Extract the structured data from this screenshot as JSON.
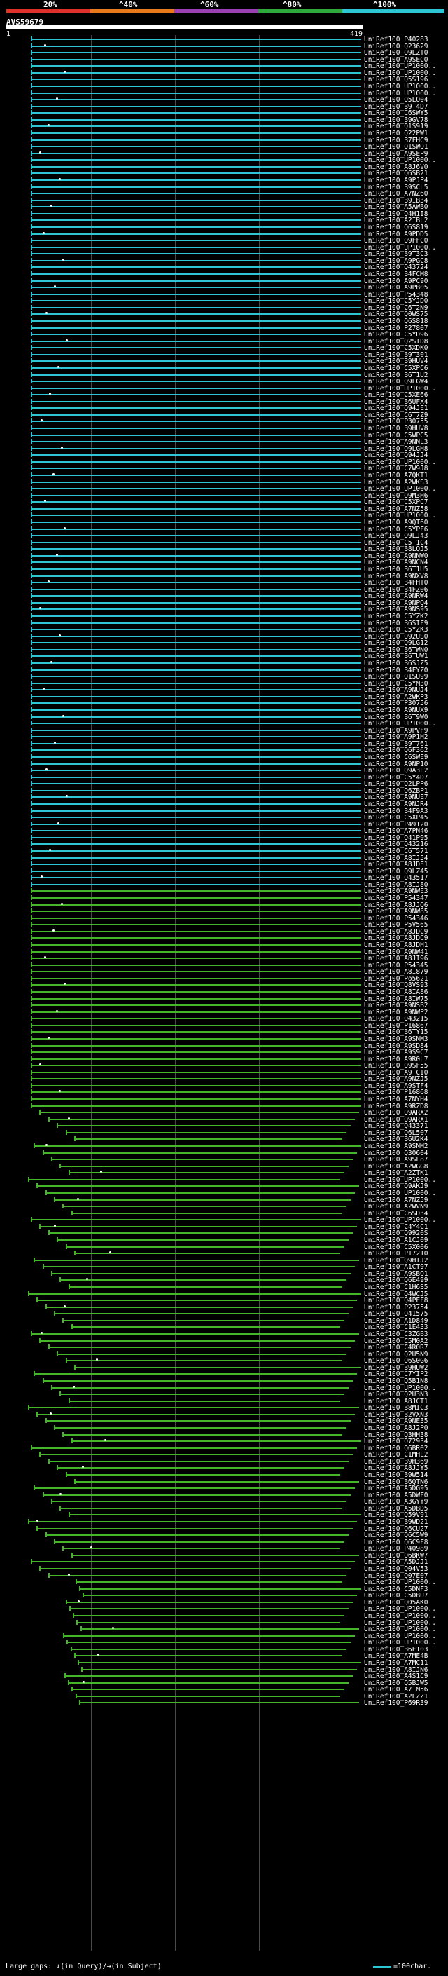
{
  "scale": {
    "labels": [
      "20%",
      "^40%",
      "^60%",
      "^80%",
      "^100%"
    ],
    "colors": [
      "#e0302a",
      "#e87a1c",
      "#9b3fb3",
      "#2faa3a",
      "#2ec6d6"
    ]
  },
  "query": {
    "id": "AVS59679",
    "start": "1",
    "end": "419"
  },
  "colors": {
    "cyan": "#2ec6d6",
    "green": "#45b52a",
    "darkbar": "#2b2b2b"
  },
  "hits": [
    "UniRef100_P40283",
    "UniRef100_Q23629",
    "UniRef100_Q9LZT0",
    "UniRef100_A9SEC0",
    "UniRef100_UP1000..",
    "UniRef100_UP1000..",
    "UniRef100_Q5S196",
    "UniRef100_UP1000..",
    "UniRef100_UP1000..",
    "UniRef100_Q5LQ04",
    "UniRef100_B9T4D7",
    "UniRef100_C6SWY5",
    "UniRef100_B9GV78",
    "UniRef100_Q1S919",
    "UniRef100_Q22PW1",
    "UniRef100_B7FHC9",
    "UniRef100_Q1SWQ1",
    "UniRef100_A9SEP9",
    "UniRef100_UP1000..",
    "UniRef100_A8J6V0",
    "UniRef100_Q6SB21",
    "UniRef100_A9PJP4",
    "UniRef100_B9SCL5",
    "UniRef100_A7NZ60",
    "UniRef100_B9IB34",
    "UniRef100_A5AWB0",
    "UniRef100_Q4H1I8",
    "UniRef100_A2IBL2",
    "UniRef100_Q6S819",
    "UniRef100_A9PDD5",
    "UniRef100_Q9FFC0",
    "UniRef100_UP1000..",
    "UniRef100_B9T3C3",
    "UniRef100_A9PGC8",
    "UniRef100_Q43724",
    "UniRef100_B4FCM8",
    "UniRef100_A9PC90",
    "UniRef100_A9PB05",
    "UniRef100_P54348",
    "UniRef100_C5YJD0",
    "UniRef100_C6T2N9",
    "UniRef100_Q0WS75",
    "UniRef100_Q6S818",
    "UniRef100_P27807",
    "UniRef100_C5YD96",
    "UniRef100_Q2STD8",
    "UniRef100_C5XDK0",
    "UniRef100_B9T301",
    "UniRef100_B9HUV4",
    "UniRef100_C5XPC6",
    "UniRef100_B6T1U2",
    "UniRef100_Q9LGW4",
    "UniRef100_UP1000..",
    "UniRef100_C5XE66",
    "UniRef100_B6UFX4",
    "UniRef100_Q94JE1",
    "UniRef100_C6T7Z9",
    "UniRef100_P30755",
    "UniRef100_B9HUV8",
    "UniRef100_C5WPC5",
    "UniRef100_A9NNL3",
    "UniRef100_Q9LGH8",
    "UniRef100_Q94JJ4",
    "UniRef100_UP1000..",
    "UniRef100_C7W9J8",
    "UniRef100_A7QKT1",
    "UniRef100_A2WKS3",
    "UniRef100_UP1000..",
    "UniRef100_Q9M3H6",
    "UniRef100_C5XPC7",
    "UniRef100_A7NZ58",
    "UniRef100_UP1000..",
    "UniRef100_A9QT60",
    "UniRef100_C5YPF6",
    "UniRef100_Q9LJ43",
    "UniRef100_C5T1C4",
    "UniRef100_B8LQJ5",
    "UniRef100_A9NNW0",
    "UniRef100_A9NCN4",
    "UniRef100_B6T1U5",
    "UniRef100_A9NXV8",
    "UniRef100_B4FHT0",
    "UniRef100_B4FZ06",
    "UniRef100_A9NRW4",
    "UniRef100_A9NPQ4",
    "UniRef100_A9NS95",
    "UniRef100_C5YZK2",
    "UniRef100_B6SIF9",
    "UniRef100_C5YZK3",
    "UniRef100_Q92US0",
    "UniRef100_Q9LG12",
    "UniRef100_B6TWN0",
    "UniRef100_B6TUW1",
    "UniRef100_B6SJZ5",
    "UniRef100_B4FYZ0",
    "UniRef100_Q1SU99",
    "UniRef100_C5YM30",
    "UniRef100_A9NUJ4",
    "UniRef100_A2WKP3",
    "UniRef100_P30756",
    "UniRef100_A9NUX9",
    "UniRef100_B6T9W0",
    "UniRef100_UP1000..",
    "UniRef100_A9PVF9",
    "UniRef100_A9P1H2",
    "UniRef100_B9T761",
    "UniRef100_Q6F362",
    "UniRef100_C6SWE9",
    "UniRef100_A9NP10",
    "UniRef100_Q9A3L2",
    "UniRef100_C5Y4D7",
    "UniRef100_Q2LPP6",
    "UniRef100_Q6ZBP1",
    "UniRef100_A9NUE7",
    "UniRef100_A9NJR4",
    "UniRef100_B4F9A3",
    "UniRef100_C5XP45",
    "UniRef100_P49120",
    "UniRef100_A7PN46",
    "UniRef100_Q41P95",
    "UniRef100_Q43216",
    "UniRef100_C6T571",
    "UniRef100_A8IJ54",
    "UniRef100_A8JDE1",
    "UniRef100_Q9LZ45",
    "UniRef100_Q43517",
    "UniRef100_A8IJ80",
    "UniRef100_A9NWE3",
    "UniRef100_P54347",
    "UniRef100_A8JJQ6",
    "UniRef100_A9NW85",
    "UniRef100_P54346",
    "UniRef100_P5V565",
    "UniRef100_A8JDC9",
    "UniRef100_A8JDC9",
    "UniRef100_A8JDH1",
    "UniRef100_A9NW41",
    "UniRef100_A8JI96",
    "UniRef100_P54345",
    "UniRef100_A8I879",
    "UniRef100_Po5621",
    "UniRef100_Q8VS93",
    "UniRef100_A8IA86",
    "UniRef100_A8IW75",
    "UniRef100_A9NSB2",
    "UniRef100_A9NWP2",
    "UniRef100_Q43215",
    "UniRef100_P16867",
    "UniRef100_B6TY15",
    "UniRef100_A9SNM3",
    "UniRef100_A9SD84",
    "UniRef100_A9S9C7",
    "UniRef100_A9R0L7",
    "UniRef100_Q9SF55",
    "UniRef100_A9TCI0",
    "UniRef100_A9NZJ5",
    "UniRef100_A9STF4",
    "UniRef100_P16868",
    "UniRef100_A7NYH4",
    "UniRef100_A9RZD8",
    "UniRef100_Q9ARX2",
    "UniRef100_Q9ARX1",
    "UniRef100_Q43371",
    "UniRef100_Q6L507",
    "UniRef100_B6U2K4",
    "UniRef100_A9SNM2",
    "UniRef100_Q30604",
    "UniRef100_A9SL87",
    "UniRef100_A2WGG8",
    "UniRef100_A2ZTK1",
    "UniRef100_UP1000..",
    "UniRef100_Q9AKJ9",
    "UniRef100_UP1000..",
    "UniRef100_A7NZ59",
    "UniRef100_A2WVN9",
    "UniRef100_C6SD34",
    "UniRef100_UP1000..",
    "UniRef100_C4Y4C1",
    "UniRef100_Q9920S",
    "UniRef100_A1CJ09",
    "UniRef100_C5X006",
    "UniRef100_P17210",
    "UniRef100_Q9HTJ2",
    "UniRef100_A1CT97",
    "UniRef100_A9SBQ1",
    "UniRef100_Q6E499",
    "UniRef100_C1H6S5",
    "UniRef100_Q4WCJ5",
    "UniRef100_Q4PEF8",
    "UniRef100_P23754",
    "UniRef100_Q41575",
    "UniRef100_A1D849",
    "UniRef100_C1E433",
    "UniRef100_C3ZGB3",
    "UniRef100_C5M0A2",
    "UniRef100_C4R0R7",
    "UniRef100_Q2U5N9",
    "UniRef100_Q6S0G6",
    "UniRef100_B9HUW2",
    "UniRef100_C7YIP2",
    "UniRef100_Q5B1N8",
    "UniRef100_UP1000..",
    "UniRef100_Q2U3N3",
    "UniRef100_A8JCT1",
    "UniRef100_B8MIC3",
    "UniRef100_B2VXN3",
    "UniRef100_A9NE35",
    "UniRef100_A8J2P0",
    "UniRef100_Q3HH38",
    "UniRef100_O72934",
    "UniRef100_Q6BR02",
    "UniRef100_C1MHL2",
    "UniRef100_B9H369",
    "UniRef100_A8JJY5",
    "UniRef100_B9W514",
    "UniRef100_B6QTN6",
    "UniRef100_A5DG95",
    "UniRef100_A5DWF0",
    "UniRef100_A3GYY9",
    "UniRef100_A5DBD5",
    "UniRef100_Q59V91",
    "UniRef100_B9WD21",
    "UniRef100_Q6CU27",
    "UniRef100_Q6C5W9",
    "UniRef100_Q6C9F8",
    "UniRef100_P40989",
    "UniRef100_Q6BKW7",
    "UniRef100_A5DJJ1",
    "UniRef100_Q04V53",
    "UniRef100_Q07E07",
    "UniRef100_UP1000..",
    "UniRef100_C5DNF3",
    "UniRef100_C5DBU7",
    "UniRef100_Q05AK0",
    "UniRef100_UP1000..",
    "UniRef100_UP1000..",
    "UniRef100_UP1000..",
    "UniRef100_UP1000..",
    "UniRef100_UP1000..",
    "UniRef100_UP1000..",
    "UniRef100_B6F103",
    "UniRef100_A7ME4B",
    "UniRef100_A7MC11",
    "UniRef100_A8IJN6",
    "UniRef100_A4S1C9",
    "UniRef100_Q5BJW5",
    "UniRef100_A7TM56",
    "UniRef100_A2LZZ1",
    "UniRef100_P69R39"
  ],
  "footer": {
    "large_gaps": "Large gaps: ↓(in Query)/→(in Subject)",
    "legend": "=100char."
  }
}
